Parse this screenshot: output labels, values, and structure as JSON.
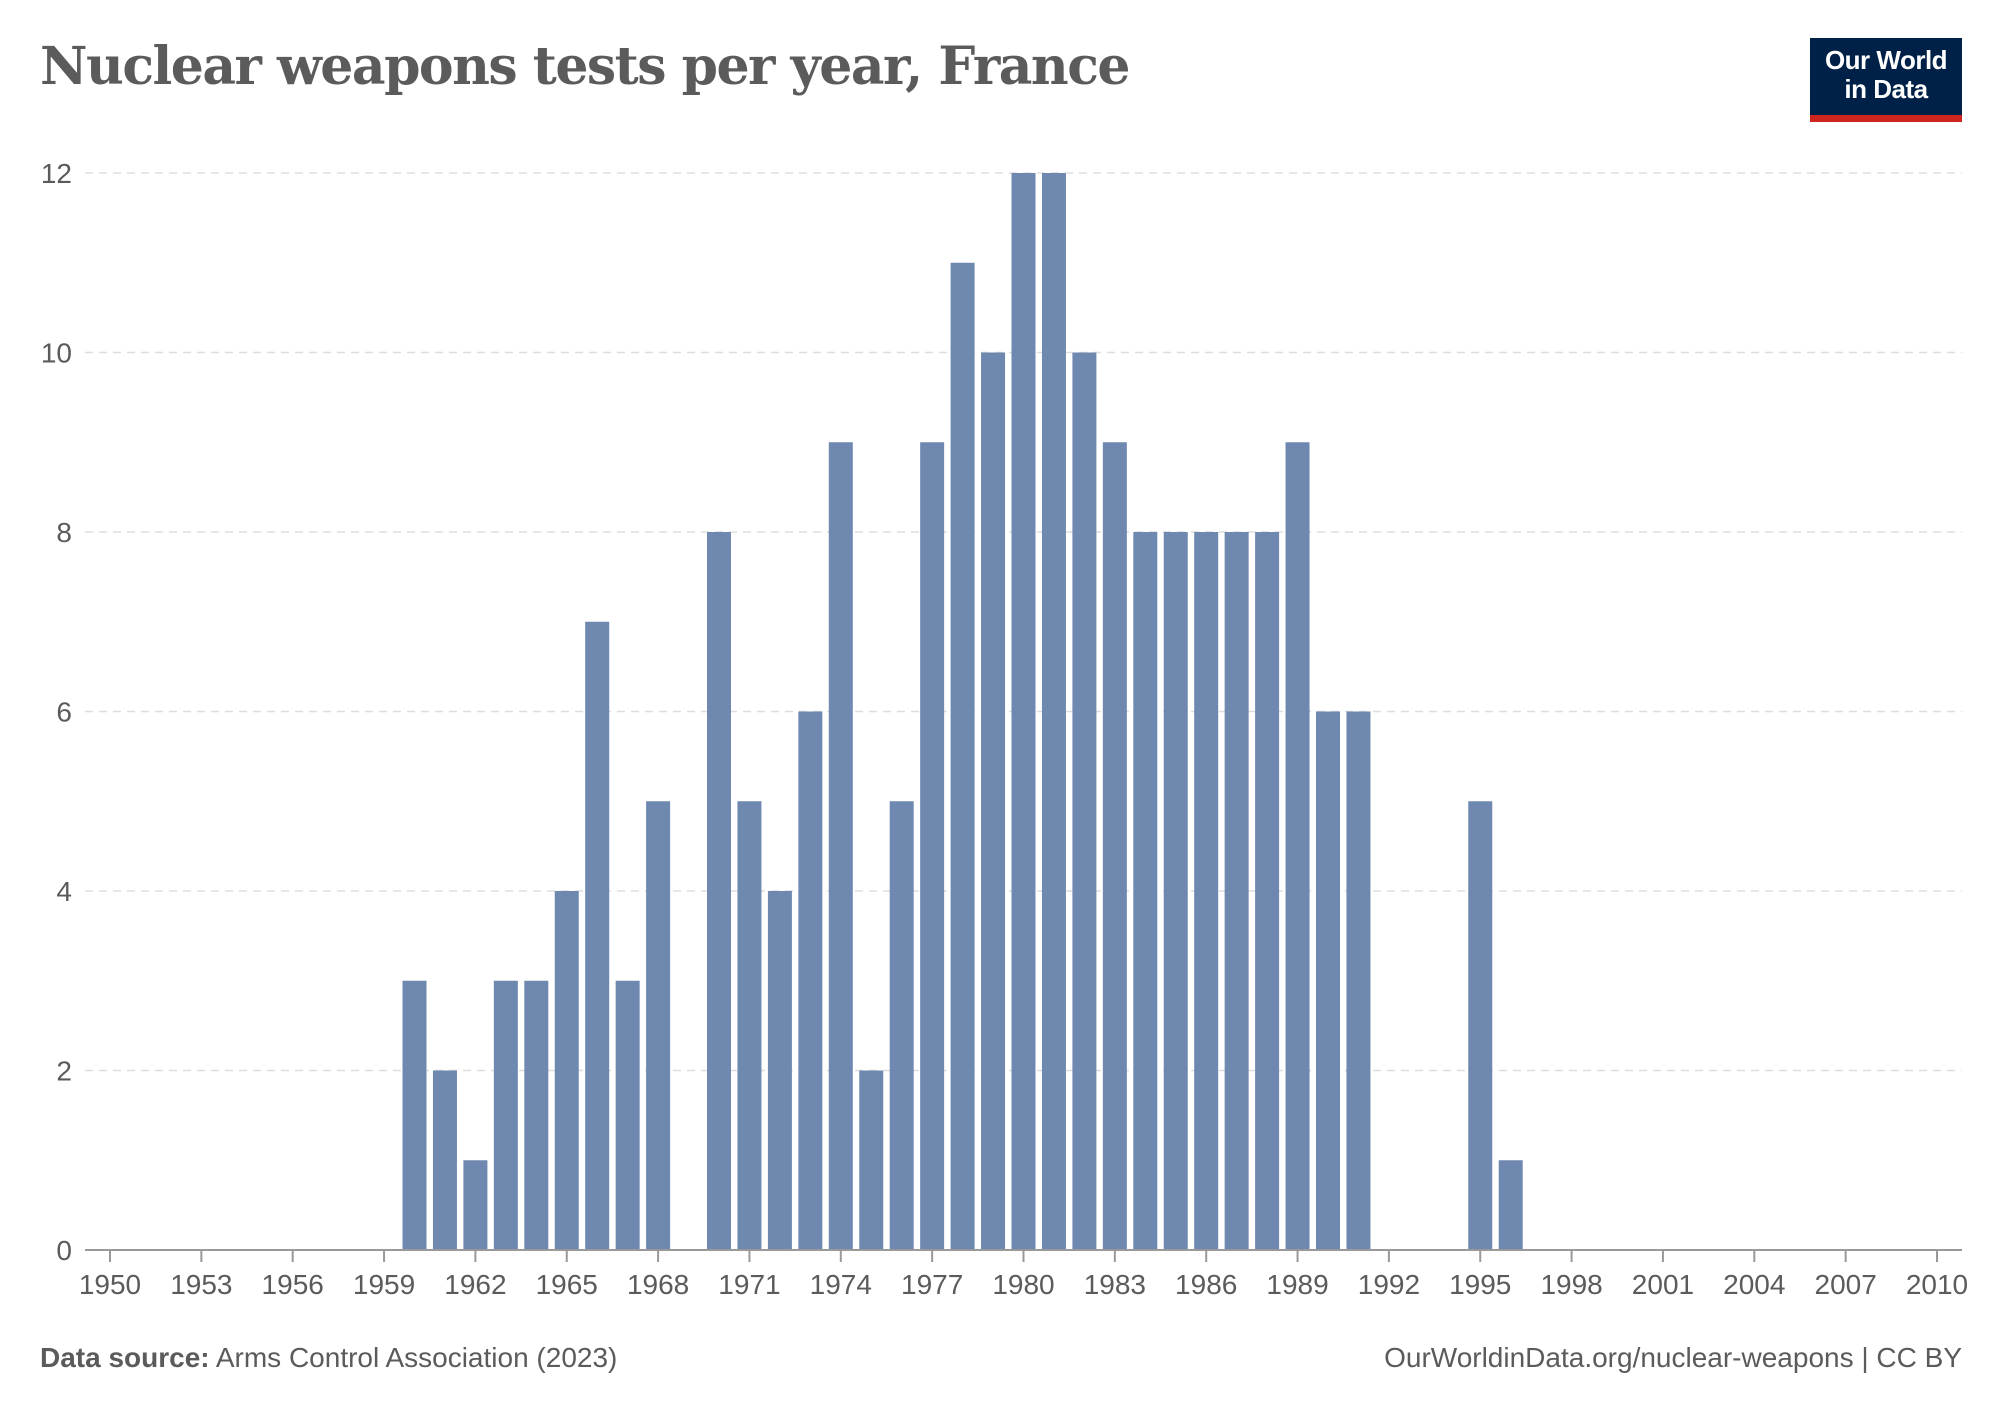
{
  "header": {
    "title": "Nuclear weapons tests per year, France",
    "logo_line1": "Our World",
    "logo_line2": "in Data"
  },
  "footer": {
    "source_label": "Data source:",
    "source_text": "Arms Control Association (2023)",
    "attribution": "OurWorldinData.org/nuclear-weapons | CC BY"
  },
  "colors": {
    "bar": "#6e88b0",
    "logo_bg": "#002147",
    "logo_accent": "#ce261e",
    "text": "#5b5b5b",
    "grid": "#dddddd",
    "axis": "#999999"
  },
  "chart_data": {
    "type": "bar",
    "title": "Nuclear weapons tests per year, France",
    "xlabel": "",
    "ylabel": "",
    "xlim": [
      1950,
      2010
    ],
    "ylim": [
      0,
      12
    ],
    "grid": true,
    "legend": "none",
    "x_ticks": [
      1950,
      1953,
      1956,
      1959,
      1962,
      1965,
      1968,
      1971,
      1974,
      1977,
      1980,
      1983,
      1986,
      1989,
      1992,
      1995,
      1998,
      2001,
      2004,
      2007,
      2010
    ],
    "y_ticks": [
      0,
      2,
      4,
      6,
      8,
      10,
      12
    ],
    "categories": [
      1960,
      1961,
      1962,
      1963,
      1964,
      1965,
      1966,
      1967,
      1968,
      1969,
      1970,
      1971,
      1972,
      1973,
      1974,
      1975,
      1976,
      1977,
      1978,
      1979,
      1980,
      1981,
      1982,
      1983,
      1984,
      1985,
      1986,
      1987,
      1988,
      1989,
      1990,
      1991,
      1992,
      1993,
      1994,
      1995,
      1996
    ],
    "values": [
      3,
      2,
      1,
      3,
      3,
      4,
      7,
      3,
      5,
      0,
      8,
      5,
      4,
      6,
      9,
      2,
      5,
      9,
      11,
      10,
      12,
      12,
      10,
      9,
      8,
      8,
      8,
      8,
      8,
      9,
      6,
      6,
      0,
      0,
      0,
      5,
      1
    ]
  }
}
